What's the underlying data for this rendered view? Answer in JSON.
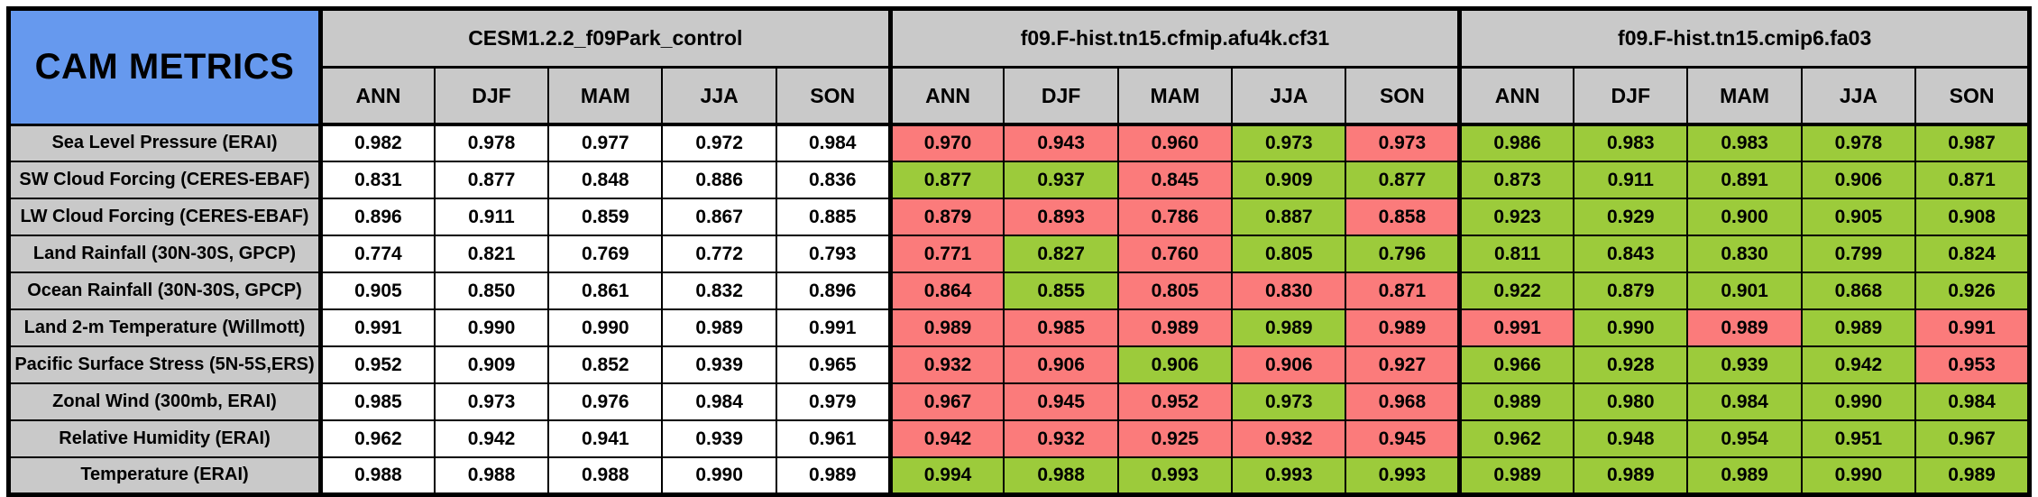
{
  "chart_data": {
    "type": "table",
    "title": "CAM METRICS",
    "column_groups": [
      "CESM1.2.2_f09Park_control",
      "f09.F-hist.tn15.cfmip.afu4k.cf31",
      "f09.F-hist.tn15.cmip6.fa03"
    ],
    "seasons": [
      "ANN",
      "DJF",
      "MAM",
      "JJA",
      "SON"
    ],
    "color_legend": {
      "w": "neutral-control-value",
      "g": "better-than-control",
      "r": "worse-than-control"
    },
    "rows": [
      {
        "label": "Sea Level Pressure (ERAI)",
        "values": [
          "0.982",
          "0.978",
          "0.977",
          "0.972",
          "0.984",
          "0.970",
          "0.943",
          "0.960",
          "0.973",
          "0.973",
          "0.986",
          "0.983",
          "0.983",
          "0.978",
          "0.987"
        ],
        "colors": [
          "w",
          "w",
          "w",
          "w",
          "w",
          "r",
          "r",
          "r",
          "g",
          "r",
          "g",
          "g",
          "g",
          "g",
          "g"
        ]
      },
      {
        "label": "SW Cloud Forcing (CERES-EBAF)",
        "values": [
          "0.831",
          "0.877",
          "0.848",
          "0.886",
          "0.836",
          "0.877",
          "0.937",
          "0.845",
          "0.909",
          "0.877",
          "0.873",
          "0.911",
          "0.891",
          "0.906",
          "0.871"
        ],
        "colors": [
          "w",
          "w",
          "w",
          "w",
          "w",
          "g",
          "g",
          "r",
          "g",
          "g",
          "g",
          "g",
          "g",
          "g",
          "g"
        ]
      },
      {
        "label": "LW Cloud Forcing (CERES-EBAF)",
        "values": [
          "0.896",
          "0.911",
          "0.859",
          "0.867",
          "0.885",
          "0.879",
          "0.893",
          "0.786",
          "0.887",
          "0.858",
          "0.923",
          "0.929",
          "0.900",
          "0.905",
          "0.908"
        ],
        "colors": [
          "w",
          "w",
          "w",
          "w",
          "w",
          "r",
          "r",
          "r",
          "g",
          "r",
          "g",
          "g",
          "g",
          "g",
          "g"
        ]
      },
      {
        "label": "Land Rainfall (30N-30S, GPCP)",
        "values": [
          "0.774",
          "0.821",
          "0.769",
          "0.772",
          "0.793",
          "0.771",
          "0.827",
          "0.760",
          "0.805",
          "0.796",
          "0.811",
          "0.843",
          "0.830",
          "0.799",
          "0.824"
        ],
        "colors": [
          "w",
          "w",
          "w",
          "w",
          "w",
          "r",
          "g",
          "r",
          "g",
          "g",
          "g",
          "g",
          "g",
          "g",
          "g"
        ]
      },
      {
        "label": "Ocean Rainfall (30N-30S, GPCP)",
        "values": [
          "0.905",
          "0.850",
          "0.861",
          "0.832",
          "0.896",
          "0.864",
          "0.855",
          "0.805",
          "0.830",
          "0.871",
          "0.922",
          "0.879",
          "0.901",
          "0.868",
          "0.926"
        ],
        "colors": [
          "w",
          "w",
          "w",
          "w",
          "w",
          "r",
          "g",
          "r",
          "r",
          "r",
          "g",
          "g",
          "g",
          "g",
          "g"
        ]
      },
      {
        "label": "Land 2-m Temperature (Willmott)",
        "values": [
          "0.991",
          "0.990",
          "0.990",
          "0.989",
          "0.991",
          "0.989",
          "0.985",
          "0.989",
          "0.989",
          "0.989",
          "0.991",
          "0.990",
          "0.989",
          "0.989",
          "0.991"
        ],
        "colors": [
          "w",
          "w",
          "w",
          "w",
          "w",
          "r",
          "r",
          "r",
          "g",
          "r",
          "r",
          "g",
          "r",
          "g",
          "r"
        ]
      },
      {
        "label": "Pacific Surface Stress (5N-5S,ERS)",
        "values": [
          "0.952",
          "0.909",
          "0.852",
          "0.939",
          "0.965",
          "0.932",
          "0.906",
          "0.906",
          "0.906",
          "0.927",
          "0.966",
          "0.928",
          "0.939",
          "0.942",
          "0.953"
        ],
        "colors": [
          "w",
          "w",
          "w",
          "w",
          "w",
          "r",
          "r",
          "g",
          "r",
          "r",
          "g",
          "g",
          "g",
          "g",
          "r"
        ]
      },
      {
        "label": "Zonal Wind (300mb, ERAI)",
        "values": [
          "0.985",
          "0.973",
          "0.976",
          "0.984",
          "0.979",
          "0.967",
          "0.945",
          "0.952",
          "0.973",
          "0.968",
          "0.989",
          "0.980",
          "0.984",
          "0.990",
          "0.984"
        ],
        "colors": [
          "w",
          "w",
          "w",
          "w",
          "w",
          "r",
          "r",
          "r",
          "g",
          "r",
          "g",
          "g",
          "g",
          "g",
          "g"
        ]
      },
      {
        "label": "Relative Humidity (ERAI)",
        "values": [
          "0.962",
          "0.942",
          "0.941",
          "0.939",
          "0.961",
          "0.942",
          "0.932",
          "0.925",
          "0.932",
          "0.945",
          "0.962",
          "0.948",
          "0.954",
          "0.951",
          "0.967"
        ],
        "colors": [
          "w",
          "w",
          "w",
          "w",
          "w",
          "r",
          "r",
          "r",
          "r",
          "r",
          "g",
          "g",
          "g",
          "g",
          "g"
        ]
      },
      {
        "label": "Temperature (ERAI)",
        "values": [
          "0.988",
          "0.988",
          "0.988",
          "0.990",
          "0.989",
          "0.994",
          "0.988",
          "0.993",
          "0.993",
          "0.993",
          "0.989",
          "0.989",
          "0.989",
          "0.990",
          "0.989"
        ],
        "colors": [
          "w",
          "w",
          "w",
          "w",
          "w",
          "g",
          "g",
          "g",
          "g",
          "g",
          "g",
          "g",
          "g",
          "g",
          "g"
        ]
      }
    ]
  },
  "colors": {
    "title_bg": "#6699EE",
    "header_bg": "#C9C9C9",
    "neutral": "#FFFFFF",
    "better_green": "#9CCB3B",
    "worse_red": "#FB7B7B",
    "border": "#000000"
  }
}
